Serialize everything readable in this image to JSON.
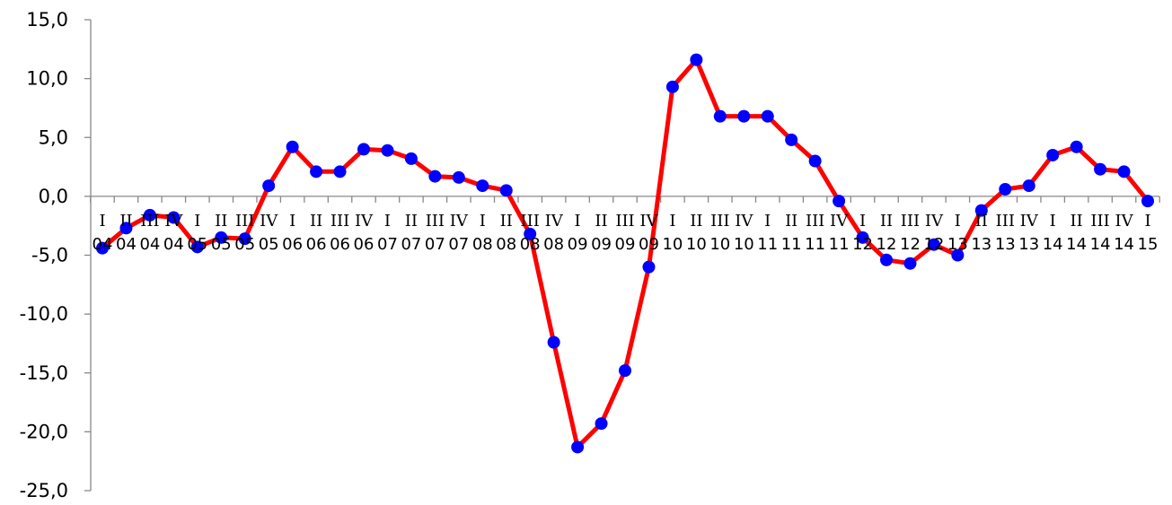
{
  "chart_data": {
    "type": "line",
    "title": "",
    "xlabel": "",
    "ylabel": "",
    "ylim": [
      -25,
      15
    ],
    "y_ticks": [
      "15,0",
      "10,0",
      "5,0",
      "0,0",
      "-5,0",
      "-10,0",
      "-15,0",
      "-20,0",
      "-25,0"
    ],
    "grid": false,
    "legend": "none",
    "line_color": "#FF0000",
    "marker_color": "#0000FF",
    "categories": [
      {
        "q": "I",
        "y": "04"
      },
      {
        "q": "II",
        "y": "04"
      },
      {
        "q": "III",
        "y": "04"
      },
      {
        "q": "IV",
        "y": "04"
      },
      {
        "q": "I",
        "y": "05"
      },
      {
        "q": "II",
        "y": "05"
      },
      {
        "q": "III",
        "y": "05"
      },
      {
        "q": "IV",
        "y": "05"
      },
      {
        "q": "I",
        "y": "06"
      },
      {
        "q": "II",
        "y": "06"
      },
      {
        "q": "III",
        "y": "06"
      },
      {
        "q": "IV",
        "y": "06"
      },
      {
        "q": "I",
        "y": "07"
      },
      {
        "q": "II",
        "y": "07"
      },
      {
        "q": "III",
        "y": "07"
      },
      {
        "q": "IV",
        "y": "07"
      },
      {
        "q": "I",
        "y": "08"
      },
      {
        "q": "II",
        "y": "08"
      },
      {
        "q": "III",
        "y": "08"
      },
      {
        "q": "IV",
        "y": "08"
      },
      {
        "q": "I",
        "y": "09"
      },
      {
        "q": "II",
        "y": "09"
      },
      {
        "q": "III",
        "y": "09"
      },
      {
        "q": "IV",
        "y": "09"
      },
      {
        "q": "I",
        "y": "10"
      },
      {
        "q": "II",
        "y": "10"
      },
      {
        "q": "III",
        "y": "10"
      },
      {
        "q": "IV",
        "y": "10"
      },
      {
        "q": "I",
        "y": "11"
      },
      {
        "q": "II",
        "y": "11"
      },
      {
        "q": "III",
        "y": "11"
      },
      {
        "q": "IV",
        "y": "11"
      },
      {
        "q": "I",
        "y": "12"
      },
      {
        "q": "II",
        "y": "12"
      },
      {
        "q": "III",
        "y": "12"
      },
      {
        "q": "IV",
        "y": "12"
      },
      {
        "q": "I",
        "y": "13"
      },
      {
        "q": "II",
        "y": "13"
      },
      {
        "q": "III",
        "y": "13"
      },
      {
        "q": "IV",
        "y": "13"
      },
      {
        "q": "I",
        "y": "14"
      },
      {
        "q": "II",
        "y": "14"
      },
      {
        "q": "III",
        "y": "14"
      },
      {
        "q": "IV",
        "y": "14"
      },
      {
        "q": "I",
        "y": "15"
      }
    ],
    "series": [
      {
        "values": [
          -4.4,
          -2.7,
          -1.6,
          -1.8,
          -4.3,
          -3.5,
          -3.6,
          0.9,
          4.2,
          2.1,
          2.1,
          4.0,
          3.9,
          3.2,
          1.7,
          1.6,
          0.9,
          0.5,
          -3.2,
          -12.4,
          -21.3,
          -19.3,
          -14.8,
          -6.0,
          9.3,
          11.6,
          6.8,
          6.8,
          6.8,
          4.8,
          3.0,
          -0.4,
          -3.5,
          -5.4,
          -5.7,
          -4.1,
          -5.0,
          -1.2,
          0.6,
          0.9,
          3.5,
          4.2,
          2.3,
          2.1,
          -0.4
        ]
      }
    ]
  }
}
